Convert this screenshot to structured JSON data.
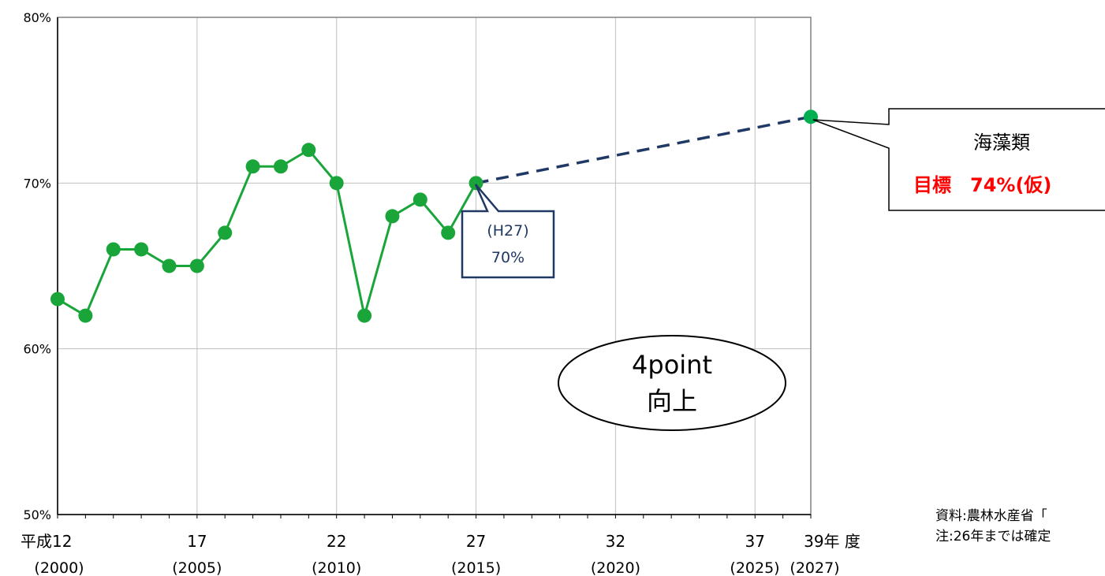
{
  "chart_data": {
    "type": "line",
    "ylim": [
      50,
      80
    ],
    "xlim": [
      2000,
      2027
    ],
    "y_ticks": [
      {
        "value": 50,
        "label": "50%"
      },
      {
        "value": 60,
        "label": "60%"
      },
      {
        "value": 70,
        "label": "70%"
      },
      {
        "value": 80,
        "label": "80%"
      }
    ],
    "x_ticks": [
      {
        "year": 2000,
        "label": "平成12",
        "sub": "(2000)"
      },
      {
        "year": 2005,
        "label": "17",
        "sub": "(2005)"
      },
      {
        "year": 2010,
        "label": "22",
        "sub": "(2010)"
      },
      {
        "year": 2015,
        "label": "27",
        "sub": "(2015)"
      },
      {
        "year": 2020,
        "label": "32",
        "sub": "(2020)"
      },
      {
        "year": 2025,
        "label": "37",
        "sub": "(2025)"
      },
      {
        "year": 2027,
        "label": "39年 度",
        "sub": "(2027)"
      }
    ],
    "grid": true,
    "series": [
      {
        "color": "#1aa53a",
        "x": [
          2000,
          2001,
          2002,
          2003,
          2004,
          2005,
          2006,
          2007,
          2008,
          2009,
          2010,
          2011,
          2012,
          2013,
          2014,
          2015
        ],
        "y": [
          63,
          62,
          66,
          66,
          65,
          65,
          67,
          71,
          71,
          72,
          70,
          62,
          68,
          69,
          67,
          70
        ]
      }
    ],
    "target": {
      "x": 2027,
      "y": 74,
      "color": "#00b050"
    },
    "projection": {
      "from": [
        2015,
        70
      ],
      "to": [
        2027,
        74
      ],
      "color": "#1f3864"
    },
    "annotations": {
      "h27_label_line1": "(H27)",
      "h27_label_line2": "70%",
      "target_title": "海藻類",
      "target_value": "目標　74%(仮)",
      "bubble_line1": "4point",
      "bubble_line2": "向上"
    },
    "colors": {
      "target_text": "#ff0000",
      "callout_text": "#1f3864"
    }
  },
  "notes": {
    "source": "資料:農林水産省「",
    "note": "注:26年までは確定"
  }
}
